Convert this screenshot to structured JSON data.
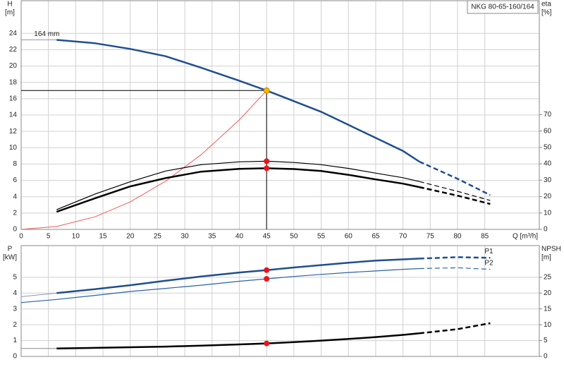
{
  "chart_data": [
    {
      "type": "line",
      "title": "NKG 80-65-160/164",
      "xlabel": "Q [m³/h]",
      "ylabel": "H",
      "yunit": "[m]",
      "y2label": "eta",
      "y2unit": "[%]",
      "x": [
        0,
        6.5,
        13.5,
        20,
        26.5,
        33,
        40,
        45,
        50,
        55,
        60,
        65,
        70,
        73,
        80,
        86
      ],
      "xlim": [
        0,
        95
      ],
      "xticks": [
        0,
        5,
        10,
        15,
        20,
        25,
        30,
        35,
        40,
        45,
        50,
        55,
        60,
        65,
        70,
        75,
        80,
        85
      ],
      "ylim": [
        0,
        28
      ],
      "yticks": [
        0,
        2,
        4,
        6,
        8,
        10,
        12,
        14,
        16,
        18,
        20,
        22,
        24
      ],
      "y2lim": [
        0,
        139.5
      ],
      "y2ticks": [
        0,
        10,
        20,
        30,
        40,
        50,
        60,
        70
      ],
      "grid": true,
      "show_xtick_labels": true,
      "series": [
        {
          "color": "#8a96b4",
          "width": 1,
          "dashed": false,
          "values": [
            23.2,
            23.2,
            null,
            null,
            null,
            null,
            null,
            null,
            null,
            null,
            null,
            null,
            null,
            null,
            null,
            null
          ]
        },
        {
          "color": "#1f4f8f",
          "width": 2.5,
          "dashed": false,
          "label": "164 mm",
          "values": [
            null,
            23.2,
            22.8,
            22.1,
            21.2,
            19.8,
            18.2,
            17.0,
            15.7,
            14.4,
            12.8,
            11.2,
            9.6,
            8.3,
            null,
            null
          ]
        },
        {
          "color": "#1f4f8f",
          "width": 2.5,
          "dashed": true,
          "values": [
            null,
            null,
            null,
            null,
            null,
            null,
            null,
            null,
            null,
            null,
            null,
            null,
            null,
            8.3,
            6.2,
            4.2
          ]
        },
        {
          "color": "#f05a5a",
          "width": 1,
          "dashed": false,
          "values": [
            0,
            0.35,
            1.53,
            3.36,
            5.9,
            9.14,
            13.4,
            17.0,
            null,
            null,
            null,
            null,
            null,
            null,
            null,
            null
          ]
        },
        {
          "color": "#000000",
          "width": 1.2,
          "dashed": false,
          "axis": "y2",
          "values": [
            null,
            12,
            21.5,
            29,
            35.6,
            39.5,
            41.2,
            41.6,
            40.8,
            39.5,
            37.2,
            34.3,
            31.5,
            29.2,
            null,
            null
          ]
        },
        {
          "color": "#000000",
          "width": 1.2,
          "dashed": true,
          "axis": "y2",
          "values": [
            null,
            null,
            null,
            null,
            null,
            null,
            null,
            null,
            null,
            null,
            null,
            null,
            null,
            29.2,
            23.2,
            17.6
          ]
        },
        {
          "color": "#000000",
          "width": 2.5,
          "dashed": false,
          "axis": "y2",
          "values": [
            null,
            10.7,
            18.9,
            26.2,
            31.3,
            35.2,
            36.9,
            37.3,
            36.8,
            35.6,
            33.3,
            30.5,
            27.9,
            25.8,
            null,
            null
          ]
        },
        {
          "color": "#000000",
          "width": 2.5,
          "dashed": true,
          "axis": "y2",
          "values": [
            null,
            null,
            null,
            null,
            null,
            null,
            null,
            null,
            null,
            null,
            null,
            null,
            null,
            25.8,
            20.6,
            15.5
          ]
        }
      ],
      "points": [
        {
          "x": 45,
          "y": 17.0,
          "color": "#f5b800",
          "guide": true
        },
        {
          "x": 45,
          "y": 41.6,
          "axis": "y2",
          "color": "#e8141c",
          "guide": false
        },
        {
          "x": 45,
          "y": 37.3,
          "axis": "y2",
          "color": "#e8141c",
          "guide": false
        }
      ]
    },
    {
      "type": "line",
      "ylabel": "P",
      "yunit": "[kW]",
      "y2label": "NPSH",
      "y2unit": "[m]",
      "x": [
        0,
        6.5,
        13.5,
        20,
        26.5,
        33,
        40,
        45,
        50,
        55,
        60,
        65,
        70,
        73,
        80,
        86
      ],
      "xlim": [
        0,
        95
      ],
      "xticks": [
        0,
        5,
        10,
        15,
        20,
        25,
        30,
        35,
        40,
        45,
        50,
        55,
        60,
        65,
        70,
        75,
        80,
        85
      ],
      "ylim": [
        0,
        7
      ],
      "yticks": [
        0,
        1,
        2,
        3,
        4,
        5
      ],
      "y2lim": [
        0,
        35
      ],
      "y2ticks": [
        0,
        5,
        10,
        15,
        20,
        25
      ],
      "grid": true,
      "show_xtick_labels": false,
      "series": [
        {
          "color": "#8a96b4",
          "width": 1,
          "dashed": false,
          "values": [
            3.77,
            4.0,
            null,
            null,
            null,
            null,
            null,
            null,
            null,
            null,
            null,
            null,
            null,
            null,
            null,
            null
          ]
        },
        {
          "color": "#1f4f8f",
          "width": 2.5,
          "dashed": false,
          "values": [
            null,
            4.0,
            4.25,
            4.5,
            4.78,
            5.05,
            5.3,
            5.45,
            5.62,
            5.77,
            5.92,
            6.05,
            6.13,
            6.18,
            null,
            null
          ]
        },
        {
          "color": "#1f4f8f",
          "width": 2.5,
          "dashed": true,
          "label": "P1",
          "values": [
            null,
            null,
            null,
            null,
            null,
            null,
            null,
            null,
            null,
            null,
            null,
            null,
            null,
            6.18,
            6.27,
            6.23
          ]
        },
        {
          "color": "#2a62a8",
          "width": 1.2,
          "dashed": false,
          "values": [
            3.4,
            3.6,
            3.85,
            4.1,
            4.3,
            4.5,
            4.75,
            4.9,
            5.05,
            5.18,
            5.3,
            5.4,
            5.5,
            5.55,
            null,
            null
          ]
        },
        {
          "color": "#2a62a8",
          "width": 1.2,
          "dashed": true,
          "label": "P2",
          "values": [
            null,
            null,
            null,
            null,
            null,
            null,
            null,
            null,
            null,
            null,
            null,
            null,
            null,
            5.55,
            5.6,
            5.5
          ]
        },
        {
          "color": "#8a8a8a",
          "width": 1,
          "dashed": false,
          "axis": "y2",
          "values": [
            2.5,
            2.5,
            null,
            null,
            null,
            null,
            null,
            null,
            null,
            null,
            null,
            null,
            null,
            null,
            null,
            null
          ]
        },
        {
          "color": "#000000",
          "width": 2.5,
          "dashed": false,
          "axis": "y2",
          "values": [
            null,
            2.5,
            2.7,
            2.9,
            3.1,
            3.4,
            3.8,
            4.1,
            4.5,
            5.0,
            5.5,
            6.1,
            6.8,
            7.3,
            null,
            null
          ]
        },
        {
          "color": "#000000",
          "width": 2.5,
          "dashed": true,
          "axis": "y2",
          "values": [
            null,
            null,
            null,
            null,
            null,
            null,
            null,
            null,
            null,
            null,
            null,
            null,
            null,
            7.3,
            8.6,
            10.5
          ]
        }
      ],
      "points": [
        {
          "x": 45,
          "y": 5.45,
          "color": "#e8141c",
          "guide": false
        },
        {
          "x": 45,
          "y": 4.9,
          "color": "#e8141c",
          "guide": false
        },
        {
          "x": 45,
          "y": 4.1,
          "axis": "y2",
          "color": "#e8141c",
          "guide": false
        }
      ]
    }
  ]
}
